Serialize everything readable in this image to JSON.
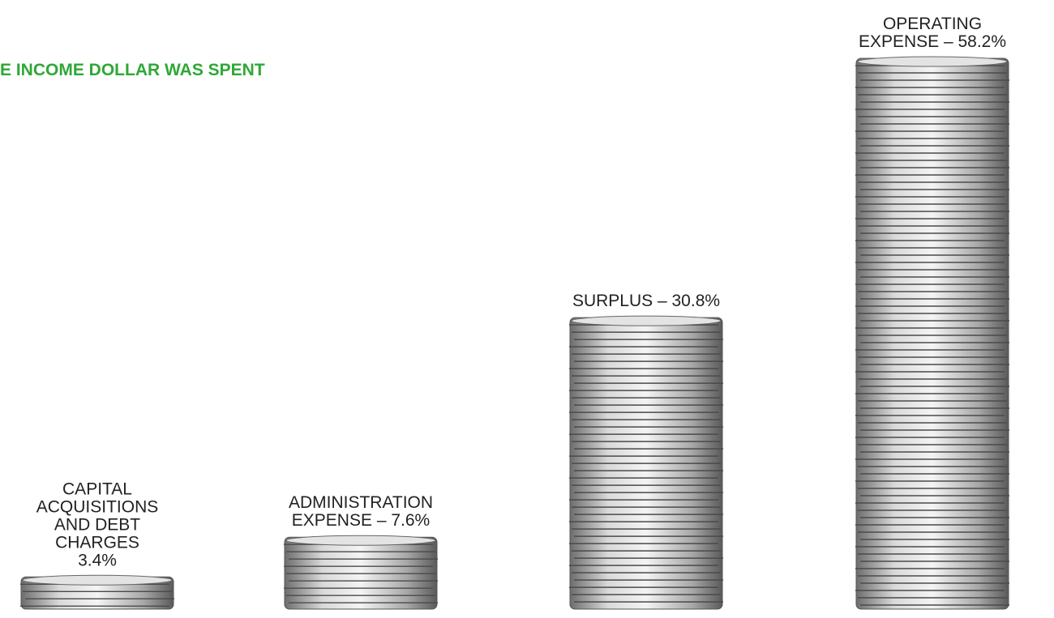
{
  "chart_data": {
    "type": "pictograph",
    "title": "E INCOME DOLLAR WAS SPENT",
    "categories": [
      [
        "CAPITAL",
        "ACQUISITIONS",
        "AND DEBT",
        "CHARGES",
        "3.4%"
      ],
      [
        "ADMINISTRATION",
        "EXPENSE – 7.6%"
      ],
      [
        "SURPLUS – 30.8%"
      ],
      [
        "OPERATING",
        "EXPENSE – 58.2%"
      ]
    ],
    "values": [
      3.4,
      7.6,
      30.8,
      58.2
    ],
    "color": "#b9b9b9",
    "title_color": "#2ea836"
  }
}
